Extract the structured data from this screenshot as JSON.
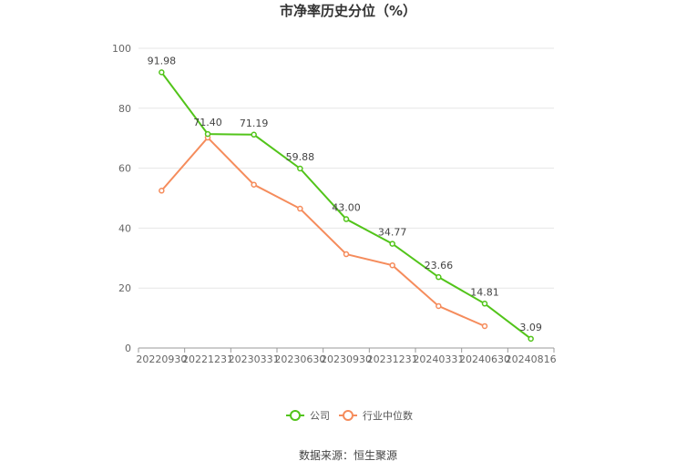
{
  "chart_data": {
    "type": "line",
    "title": "市净率历史分位（%）",
    "xlabel": "",
    "ylabel": "",
    "categories": [
      "20220930",
      "20221231",
      "20230331",
      "20230630",
      "20230930",
      "20231231",
      "20240331",
      "20240630",
      "20240816"
    ],
    "ylim": [
      0,
      100
    ],
    "yticks": [
      0,
      20,
      40,
      60,
      80,
      100
    ],
    "grid": true,
    "legend_position": "bottom",
    "series": [
      {
        "name": "公司",
        "color": "#52c41a",
        "values": [
          91.98,
          71.4,
          71.19,
          59.88,
          43.0,
          34.77,
          23.66,
          14.81,
          3.09
        ],
        "labels": [
          "91.98",
          "71.40",
          "71.19",
          "59.88",
          "43.00",
          "34.77",
          "23.66",
          "14.81",
          "3.09"
        ]
      },
      {
        "name": "行业中位数",
        "color": "#f58c5c",
        "values": [
          52.5,
          70.2,
          54.5,
          46.5,
          31.3,
          27.6,
          14.0,
          7.3,
          null
        ]
      }
    ],
    "source": "数据来源：恒生聚源"
  }
}
